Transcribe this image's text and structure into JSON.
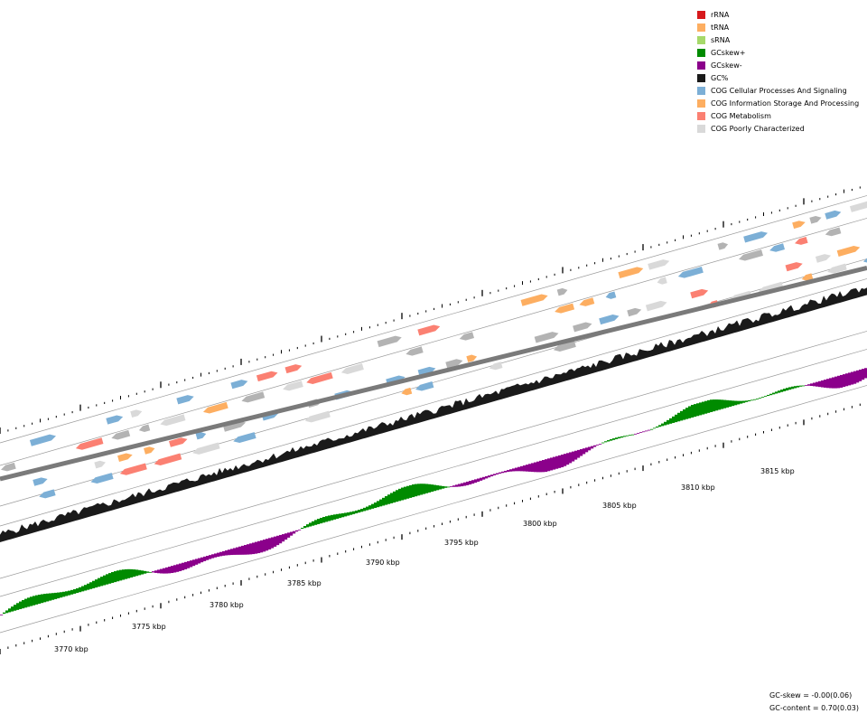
{
  "legend": [
    {
      "label": "rRNA",
      "color": "#d7191c"
    },
    {
      "label": "tRNA",
      "color": "#fdae61"
    },
    {
      "label": "sRNA",
      "color": "#a6d96a"
    },
    {
      "label": "GCskew+",
      "color": "#008b00"
    },
    {
      "label": "GCskew-",
      "color": "#8b008b"
    },
    {
      "label": "GC%",
      "color": "#1a1a1a"
    },
    {
      "label": "COG Cellular Processes And Signaling",
      "color": "#7cafd6"
    },
    {
      "label": "COG Information Storage And Processing",
      "color": "#fdae61"
    },
    {
      "label": "COG Metabolism",
      "color": "#fb8072"
    },
    {
      "label": "COG Poorly Characterized",
      "color": "#d9d9d9"
    }
  ],
  "stats": {
    "gc_skew": "GC-skew = -0.00(0.06)",
    "gc_content": "GC-content = 0.70(0.03)"
  },
  "axis": {
    "unit": "kbp",
    "start_kbp": 3768,
    "end_kbp": 3820,
    "labels": [
      "3770 kbp",
      "3775 kbp",
      "3780 kbp",
      "3785 kbp",
      "3790 kbp",
      "3795 kbp",
      "3800 kbp",
      "3805 kbp",
      "3810 kbp",
      "3815 kbp"
    ]
  },
  "colors": {
    "ring_line": "#9a9a9a",
    "backbone": "#7a7a7a",
    "tick": "#000000"
  }
}
